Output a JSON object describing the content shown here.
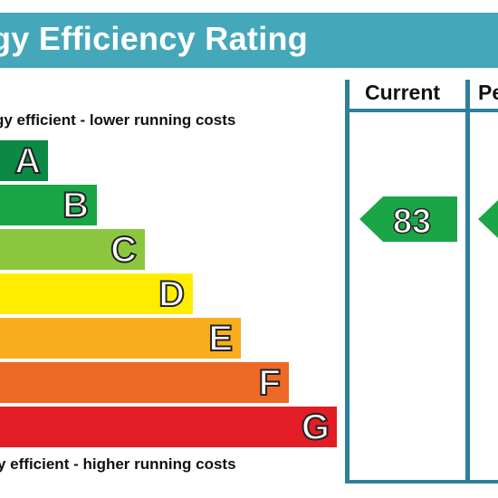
{
  "header": {
    "title": "gy Efficiency Rating"
  },
  "columns": {
    "current_label": "Current",
    "potential_label": "Pe"
  },
  "notes": {
    "top": "gy efficient - lower running costs",
    "bottom": "y efficient - higher running costs"
  },
  "bands": [
    {
      "letter": "A",
      "color": "#0c8a45"
    },
    {
      "letter": "B",
      "color": "#1aa647"
    },
    {
      "letter": "C",
      "color": "#8cc63f"
    },
    {
      "letter": "D",
      "color": "#ffed00"
    },
    {
      "letter": "E",
      "color": "#f7ad1d"
    },
    {
      "letter": "F",
      "color": "#ec6a25"
    },
    {
      "letter": "G",
      "color": "#e21d26"
    }
  ],
  "current": {
    "value": "83",
    "color": "#1aa647"
  },
  "potential": {
    "color": "#1aa647"
  },
  "colors": {
    "title_bar": "#44a8ba",
    "frame": "#2e7f9c"
  }
}
